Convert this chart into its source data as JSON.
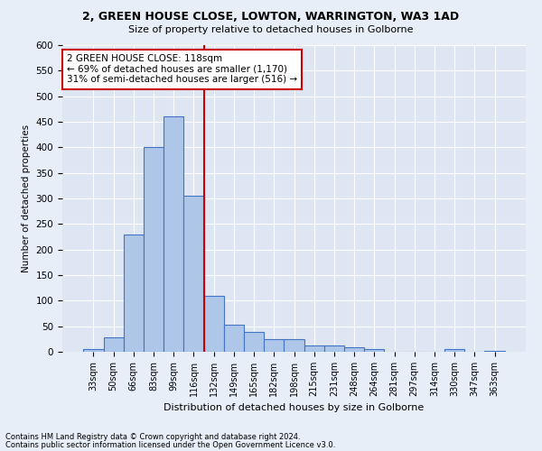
{
  "title": "2, GREEN HOUSE CLOSE, LOWTON, WARRINGTON, WA3 1AD",
  "subtitle": "Size of property relative to detached houses in Golborne",
  "xlabel": "Distribution of detached houses by size in Golborne",
  "ylabel": "Number of detached properties",
  "categories": [
    "33sqm",
    "50sqm",
    "66sqm",
    "83sqm",
    "99sqm",
    "116sqm",
    "132sqm",
    "149sqm",
    "165sqm",
    "182sqm",
    "198sqm",
    "215sqm",
    "231sqm",
    "248sqm",
    "264sqm",
    "281sqm",
    "297sqm",
    "314sqm",
    "330sqm",
    "347sqm",
    "363sqm"
  ],
  "values": [
    5,
    28,
    230,
    400,
    460,
    305,
    110,
    53,
    38,
    25,
    25,
    13,
    13,
    8,
    5,
    0,
    0,
    0,
    5,
    0,
    2
  ],
  "bar_color": "#aec6e8",
  "bar_edge_color": "#4472c4",
  "vline_color": "#cc0000",
  "vline_x": 5.5,
  "annotation_text": "2 GREEN HOUSE CLOSE: 118sqm\n← 69% of detached houses are smaller (1,170)\n31% of semi-detached houses are larger (516) →",
  "annotation_box_color": "#ffffff",
  "annotation_box_edge_color": "#cc0000",
  "footnote1": "Contains HM Land Registry data © Crown copyright and database right 2024.",
  "footnote2": "Contains public sector information licensed under the Open Government Licence v3.0.",
  "bg_color": "#e8eef7",
  "plot_bg_color": "#dde6f2",
  "ylim": [
    0,
    600
  ],
  "yticks": [
    0,
    50,
    100,
    150,
    200,
    250,
    300,
    350,
    400,
    450,
    500,
    550,
    600
  ]
}
